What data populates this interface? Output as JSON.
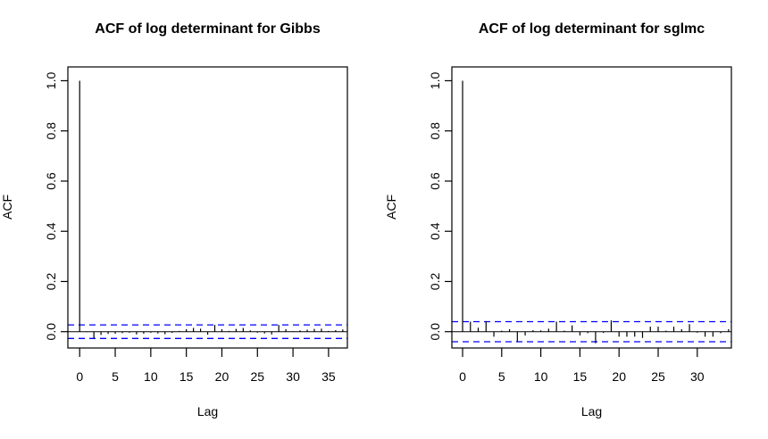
{
  "page": {
    "background": "#ffffff"
  },
  "colors": {
    "axis": "#000000",
    "bars": "#000000",
    "confidence_dashed": "#0000ff",
    "title": "#000000"
  },
  "chart_data": [
    {
      "type": "bar",
      "title": "ACF of log determinant for Gibbs",
      "xlabel": "Lag",
      "ylabel": "ACF",
      "x_ticks": [
        0,
        5,
        10,
        15,
        20,
        25,
        30,
        35
      ],
      "y_ticks": [
        0.0,
        0.2,
        0.4,
        0.6,
        0.8,
        1.0
      ],
      "y_tick_labels": [
        "0.0",
        "0.2",
        "0.4",
        "0.6",
        "0.8",
        "1.0"
      ],
      "xlim": [
        -1.66,
        37.65
      ],
      "ylim": [
        -0.065,
        1.055
      ],
      "conf_bound": 0.027,
      "grid": false,
      "legend": "none",
      "x": [
        0,
        1,
        2,
        3,
        4,
        5,
        6,
        7,
        8,
        9,
        10,
        11,
        12,
        13,
        14,
        15,
        16,
        17,
        18,
        19,
        20,
        21,
        22,
        23,
        24,
        25,
        26,
        27,
        28,
        29,
        30,
        31,
        32,
        33,
        34,
        35,
        36,
        37
      ],
      "values": [
        1.0,
        -0.002,
        -0.027,
        -0.013,
        -0.009,
        -0.008,
        -0.006,
        -0.004,
        -0.011,
        -0.008,
        -0.004,
        -0.007,
        -0.01,
        -0.005,
        0.003,
        0.01,
        0.015,
        0.012,
        -0.012,
        0.027,
        0.01,
        0.003,
        0.011,
        0.015,
        0.005,
        -0.004,
        -0.007,
        -0.011,
        0.027,
        0.01,
        0.002,
        0.005,
        0.008,
        0.011,
        0.012,
        0.003,
        0.006,
        0.009
      ]
    },
    {
      "type": "bar",
      "title": "ACF of log determinant for sglmc",
      "xlabel": "Lag",
      "ylabel": "ACF",
      "x_ticks": [
        0,
        5,
        10,
        15,
        20,
        25,
        30
      ],
      "y_ticks": [
        0.0,
        0.2,
        0.4,
        0.6,
        0.8,
        1.0
      ],
      "y_tick_labels": [
        "0.0",
        "0.2",
        "0.4",
        "0.6",
        "0.8",
        "1.0"
      ],
      "xlim": [
        -1.37,
        34.36
      ],
      "ylim": [
        -0.065,
        1.055
      ],
      "conf_bound": 0.04,
      "grid": false,
      "legend": "none",
      "x": [
        0,
        1,
        2,
        3,
        4,
        5,
        6,
        7,
        8,
        9,
        10,
        11,
        12,
        13,
        14,
        15,
        16,
        17,
        18,
        19,
        20,
        21,
        22,
        23,
        24,
        25,
        26,
        27,
        28,
        29,
        30,
        31,
        32,
        33,
        34
      ],
      "values": [
        1.0,
        0.04,
        0.016,
        0.04,
        -0.02,
        0.004,
        0.01,
        -0.04,
        -0.015,
        0.006,
        0.005,
        0.012,
        0.04,
        0.004,
        0.025,
        -0.015,
        -0.006,
        -0.046,
        -0.005,
        0.045,
        -0.02,
        -0.02,
        -0.02,
        -0.025,
        0.02,
        0.02,
        0.004,
        0.02,
        0.01,
        0.03,
        -0.004,
        -0.02,
        -0.02,
        -0.006,
        0.01
      ]
    }
  ]
}
